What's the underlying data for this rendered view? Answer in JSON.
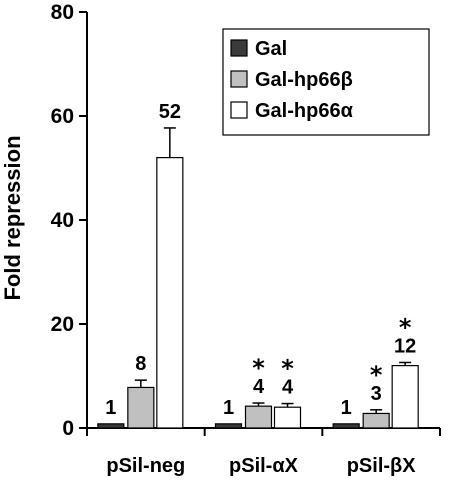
{
  "chart_data": {
    "type": "bar",
    "ylabel": "Fold repression",
    "ylim": [
      0,
      80
    ],
    "yticks": [
      0,
      20,
      40,
      60,
      80
    ],
    "categories": [
      "pSil-neg",
      "pSil-αX",
      "pSil-βX"
    ],
    "legend_position": "top-right",
    "series": [
      {
        "name": "Gal",
        "color": "#3a3a3a",
        "values": [
          0.8,
          0.8,
          0.8
        ],
        "errors": [
          0,
          0,
          0
        ],
        "labels": [
          "1",
          "1",
          "1"
        ],
        "significant": [
          false,
          false,
          false
        ]
      },
      {
        "name": "Gal-hp66β",
        "color": "#c0c0c0",
        "values": [
          7.8,
          4.2,
          2.8
        ],
        "errors": [
          1.4,
          0.6,
          0.7
        ],
        "labels": [
          "8",
          "4",
          "3"
        ],
        "significant": [
          false,
          true,
          true
        ]
      },
      {
        "name": "Gal-hp66α",
        "color": "#ffffff",
        "values": [
          52,
          4.0,
          12
        ],
        "errors": [
          5.7,
          0.7,
          0.6
        ],
        "labels": [
          "52",
          "4",
          "12"
        ],
        "significant": [
          false,
          true,
          true
        ]
      }
    ],
    "significance_marker": "*"
  }
}
